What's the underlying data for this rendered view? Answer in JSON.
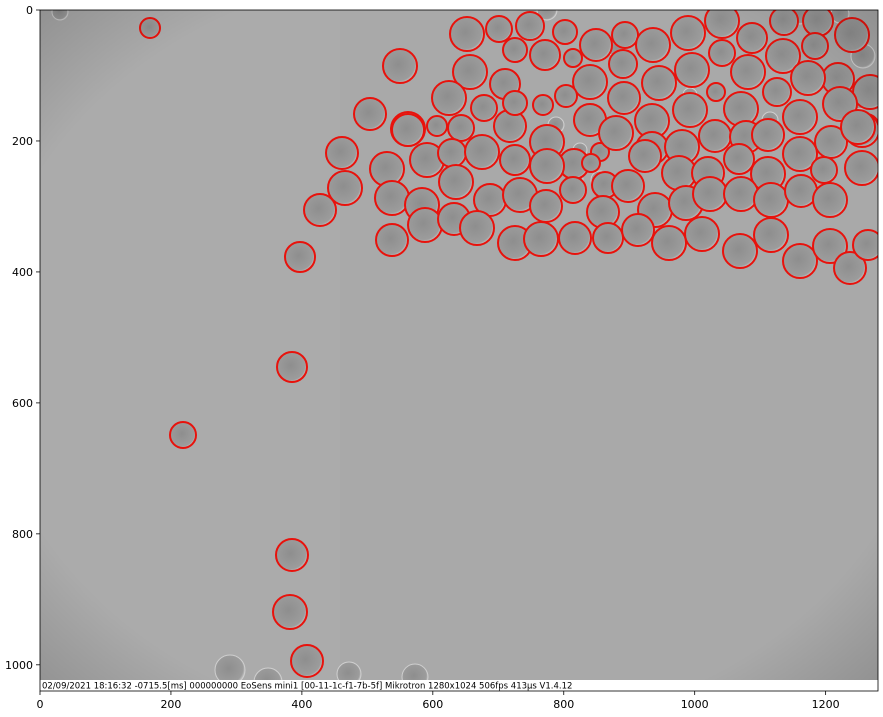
{
  "figure": {
    "x_ticks": [
      "0",
      "200",
      "400",
      "600",
      "800",
      "1000",
      "1200"
    ],
    "y_ticks": [
      "0",
      "200",
      "400",
      "600",
      "800",
      "1000"
    ],
    "x_range": [
      0,
      1280
    ],
    "y_range": [
      1040,
      0
    ],
    "image_size": {
      "width": 1280,
      "height": 1024
    },
    "y_axis_inverted": true,
    "detection_color": "#e8120c",
    "background_gray": "#a9a9a9",
    "stamp_text": "02/09/2021 18:16:32 -0715.5[ms] 000000000 EoSens mini1 [00-11-1c-f1-7b-5f] Mikrotron 1280x1024 506fps 413µs V1.4.12"
  }
}
